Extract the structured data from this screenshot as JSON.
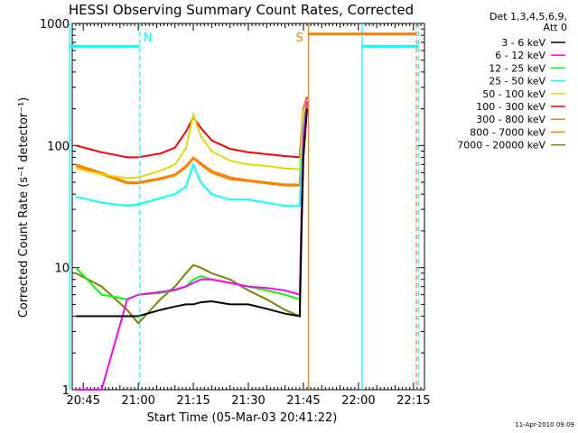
{
  "chart_data": {
    "type": "line",
    "title": "HESSI Observing Summary Count Rates, Corrected",
    "xlabel": "Start Time (05-Mar-03 20:41:22)",
    "ylabel": "Corrected Count Rate (s⁻¹ detector⁻¹)",
    "yscale": "log",
    "ylim": [
      1,
      1000
    ],
    "xlim_minutes_after_20:00": [
      42,
      138
    ],
    "x_tick_labels": [
      "20:45",
      "21:00",
      "21:15",
      "21:30",
      "21:45",
      "22:00",
      "22:15"
    ],
    "x_tick_minutes": [
      45,
      60,
      75,
      90,
      105,
      120,
      135
    ],
    "y_tick_labels": [
      "1",
      "10",
      "100",
      "1000"
    ],
    "y_tick_values": [
      1,
      10,
      100,
      1000
    ],
    "legend_header": [
      "Det 1,3,4,5,6,9,",
      "Att 0"
    ],
    "footer_date": "11-Apr-2010 09:09",
    "night_label": "N",
    "saa_label": "S",
    "x_minutes": [
      43,
      50,
      57,
      60,
      66,
      70,
      73,
      75,
      77,
      80,
      85,
      90,
      95,
      100,
      104,
      104.5,
      105,
      106
    ],
    "series": [
      {
        "name": "3 - 6 keV",
        "color": "#000000",
        "values": [
          4,
          4,
          4,
          4,
          4.5,
          4.8,
          5,
          5,
          5.2,
          5.3,
          5,
          5,
          4.6,
          4.2,
          4,
          20,
          80,
          200
        ]
      },
      {
        "name": "6 - 12 keV",
        "color": "#ff00ff",
        "values": [
          1,
          1,
          5.5,
          6,
          6.3,
          6.6,
          7,
          7.5,
          8,
          8,
          7.5,
          7,
          6.8,
          6.5,
          6,
          30,
          120,
          230
        ]
      },
      {
        "name": "12 - 25 keV",
        "color": "#00ff00",
        "values": [
          10,
          6,
          5.5,
          6,
          6.2,
          6.5,
          7,
          8,
          8.5,
          8,
          7.5,
          7,
          6.5,
          6,
          5.5,
          30,
          100,
          220
        ]
      },
      {
        "name": "25 - 50 keV",
        "color": "#00ffff",
        "values": [
          38,
          34,
          32,
          33,
          37,
          40,
          46,
          70,
          50,
          40,
          36,
          36,
          34,
          32,
          32,
          70,
          140,
          230
        ]
      },
      {
        "name": "50 - 100 keV",
        "color": "#dddd00",
        "values": [
          65,
          58,
          54,
          55,
          62,
          70,
          95,
          180,
          120,
          90,
          75,
          70,
          68,
          65,
          64,
          120,
          190,
          240
        ]
      },
      {
        "name": "100 - 300 keV",
        "color": "#ff0000",
        "values": [
          100,
          88,
          80,
          80,
          86,
          96,
          130,
          170,
          140,
          110,
          94,
          88,
          85,
          82,
          80,
          130,
          200,
          250
        ]
      },
      {
        "name": "300 - 800 keV",
        "color": "#ff7f00",
        "values": [
          70,
          60,
          50,
          50,
          54,
          58,
          68,
          80,
          72,
          62,
          55,
          52,
          50,
          48,
          48,
          100,
          170,
          230
        ]
      },
      {
        "name": "800 - 7000 keV",
        "color": "#ff8000",
        "values": [
          68,
          58,
          49,
          49,
          53,
          57,
          66,
          78,
          70,
          60,
          53,
          51,
          49,
          47,
          47,
          95,
          165,
          225
        ]
      },
      {
        "name": "7000 - 20000 keV",
        "color": "#808000",
        "values": [
          9,
          7,
          4.5,
          3.5,
          5.5,
          7,
          9,
          10.5,
          10,
          9,
          8,
          6.5,
          5.5,
          4.5,
          4,
          25,
          90,
          200
        ]
      }
    ],
    "markers": [
      {
        "kind": "night",
        "color": "#00ffff",
        "x_minutes": 41.3,
        "style": "solid"
      },
      {
        "kind": "night",
        "color": "#00ffff",
        "x_minutes": 60.4,
        "style": "dashed"
      },
      {
        "kind": "saa",
        "color": "#ff7f00",
        "x_minutes": 106.4,
        "style": "solid"
      },
      {
        "kind": "night",
        "color": "#00ffff",
        "x_minutes": 121.0,
        "style": "solid"
      },
      {
        "kind": "saa",
        "color": "#ff7f00",
        "x_minutes": 135.8,
        "style": "dashed"
      },
      {
        "kind": "night",
        "color": "#00ffff",
        "x_minutes": 136.4,
        "style": "dashed"
      }
    ],
    "bars": [
      {
        "kind": "night",
        "color": "#00ffff",
        "from_minutes": 41.3,
        "to_minutes": 60.4
      },
      {
        "kind": "saa",
        "color": "#ff7f00",
        "from_minutes": 106.4,
        "to_minutes": 135.8
      },
      {
        "kind": "night",
        "color": "#00ffff",
        "from_minutes": 121.0,
        "to_minutes": 136.4
      }
    ]
  }
}
